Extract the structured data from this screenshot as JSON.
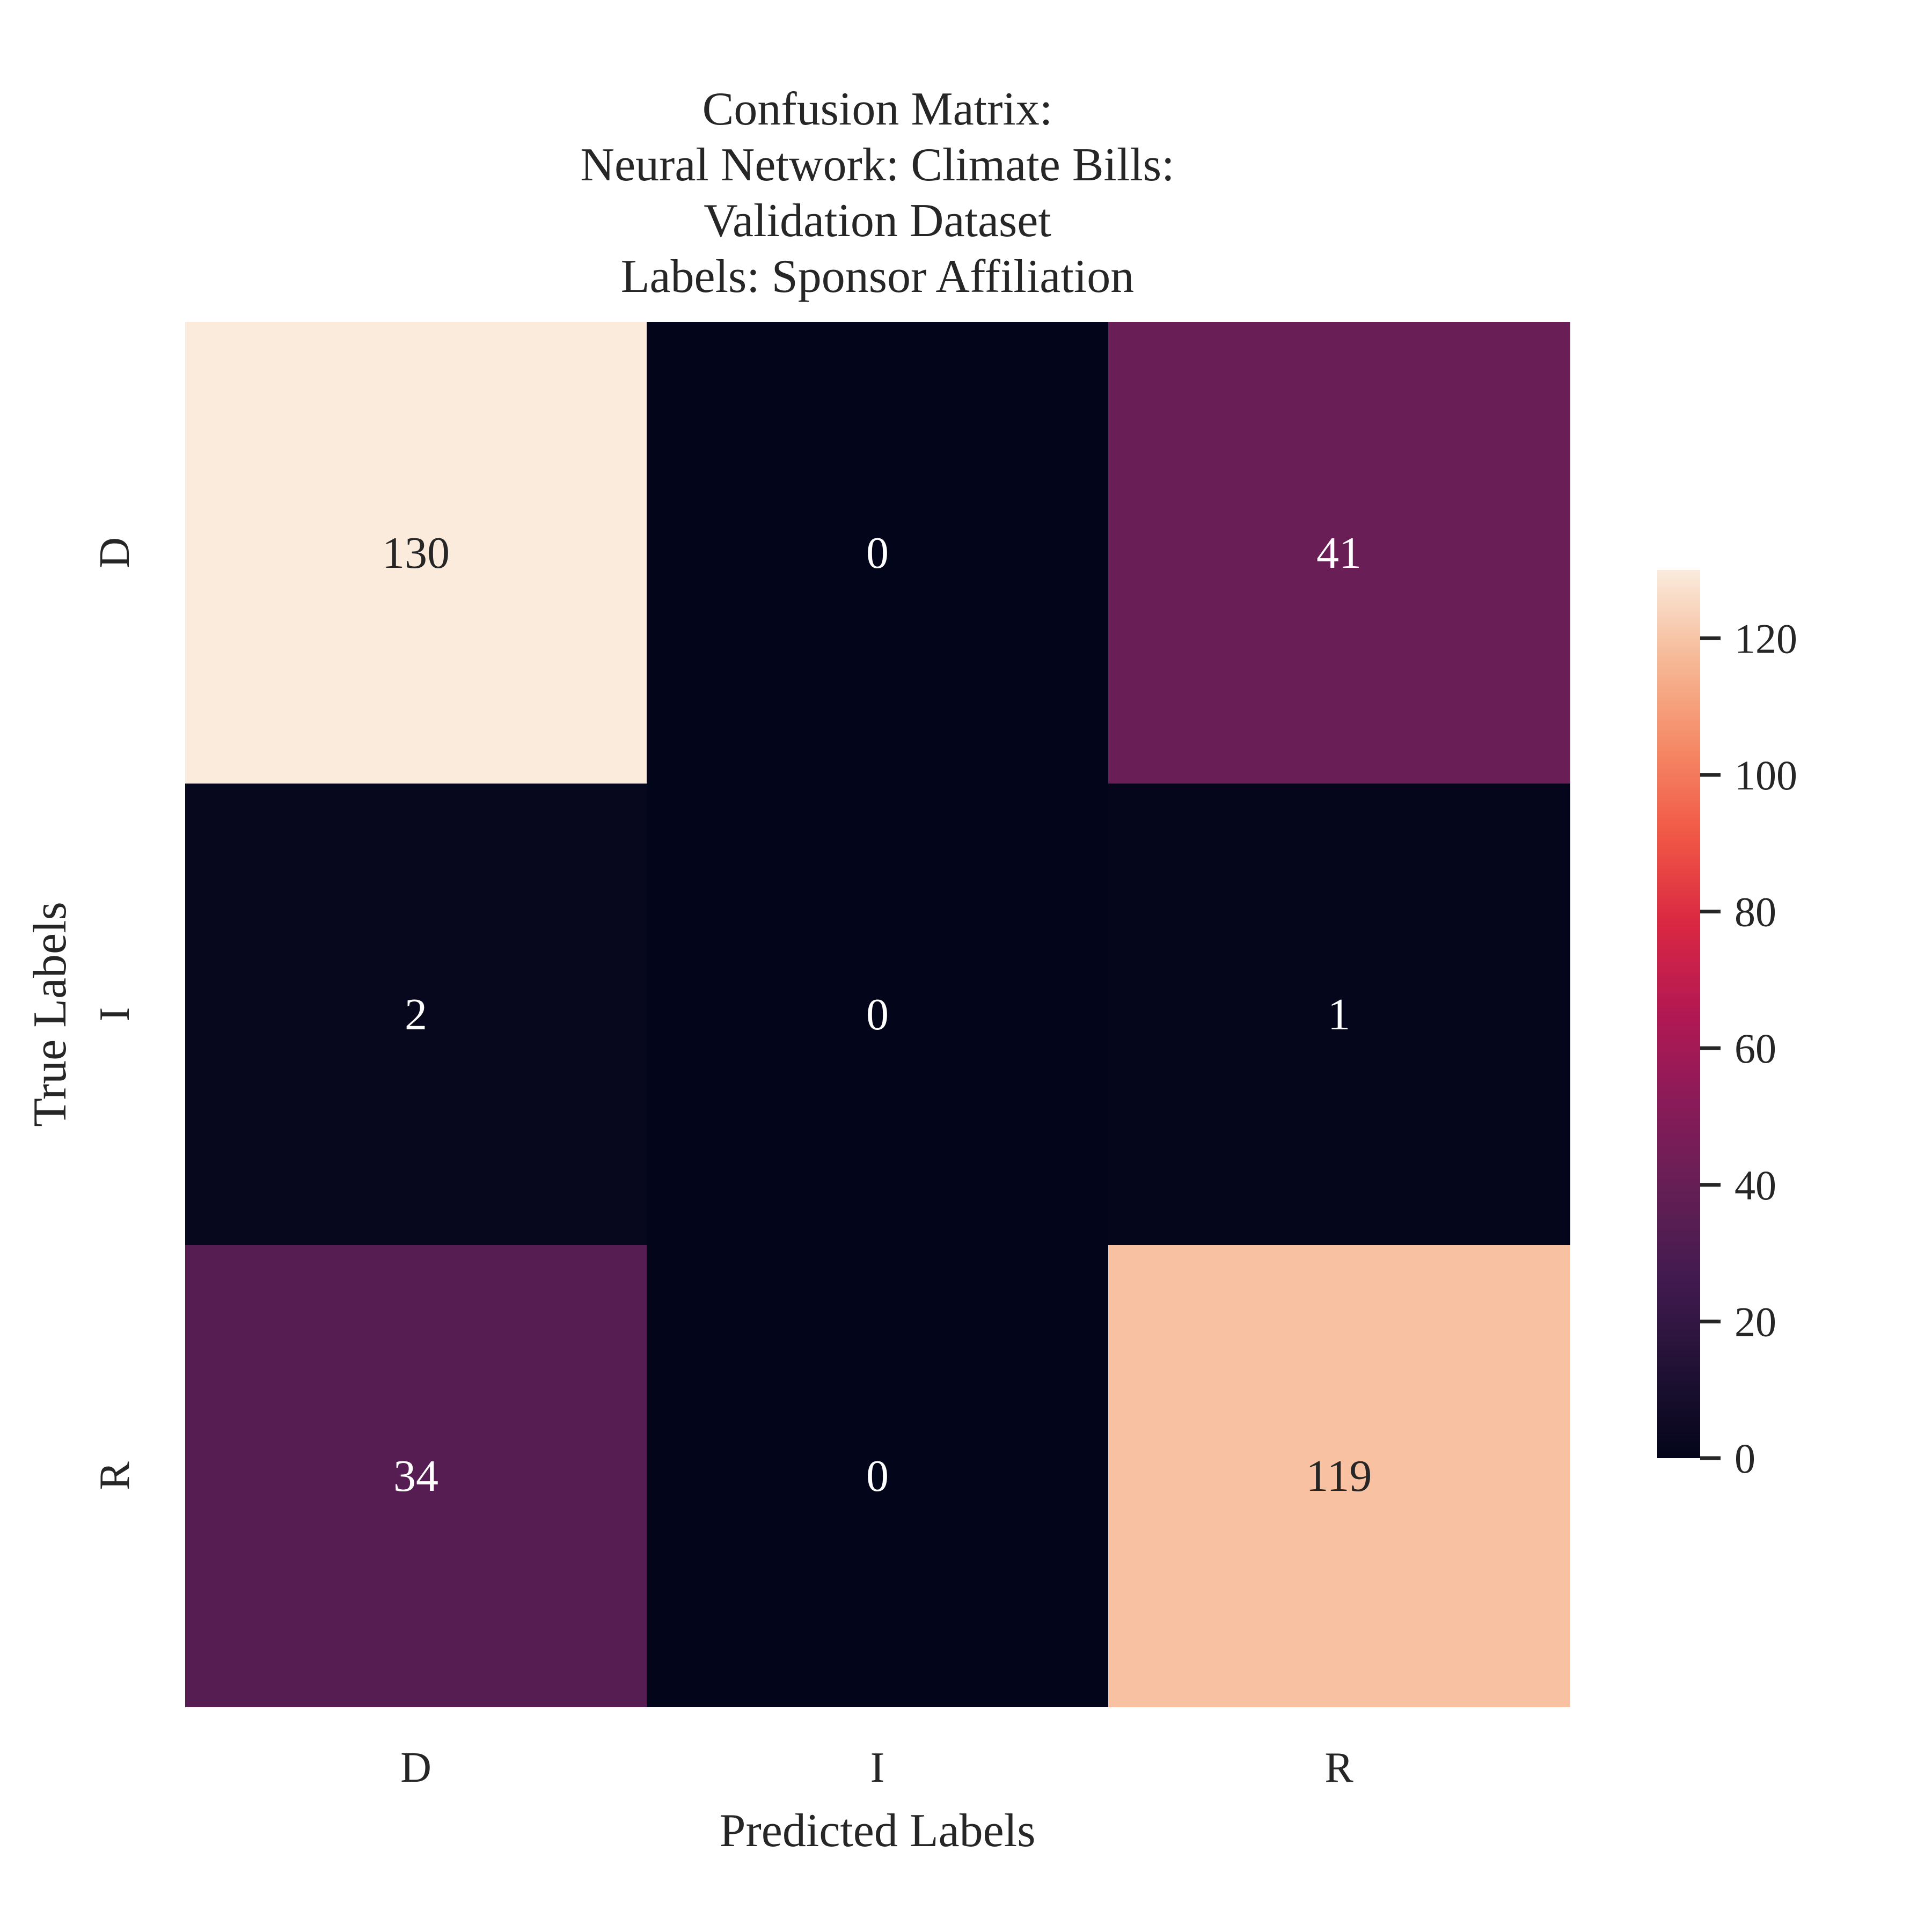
{
  "chart_data": {
    "type": "heatmap",
    "title_lines": [
      "Confusion Matrix:",
      "Neural Network: Climate Bills:",
      "Validation Dataset",
      "Labels: Sponsor Affiliation"
    ],
    "xlabel": "Predicted Labels",
    "ylabel": "True Labels",
    "x_categories": [
      "D",
      "I",
      "R"
    ],
    "y_categories": [
      "D",
      "I",
      "R"
    ],
    "values": [
      [
        130,
        0,
        41
      ],
      [
        2,
        0,
        1
      ],
      [
        34,
        0,
        119
      ]
    ],
    "colorbar": {
      "min": 0,
      "max": 130,
      "ticks": [
        0,
        20,
        40,
        60,
        80,
        100,
        120
      ],
      "colormap": "rocket"
    },
    "grid": false
  }
}
